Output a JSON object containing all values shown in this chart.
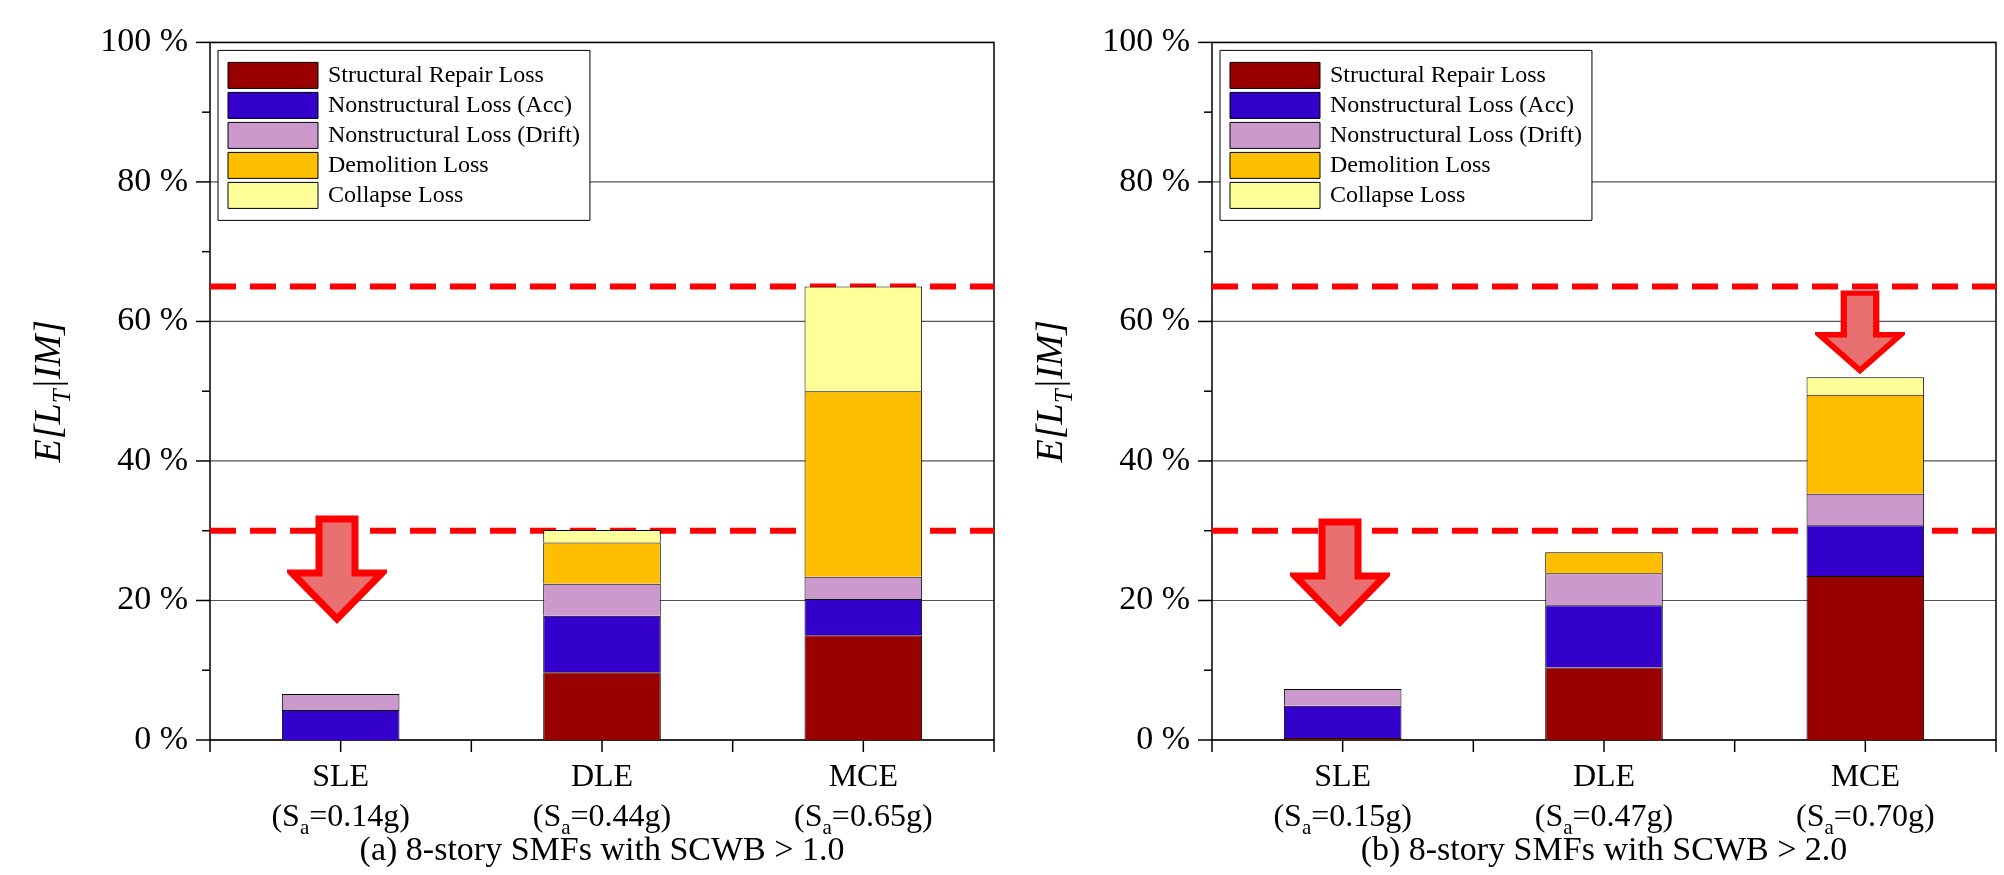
{
  "chart_data": [
    {
      "type": "bar",
      "stacked": true,
      "title": "(a) 8-story SMFs with SCWB > 1.0",
      "ylabel": "E[L$_{T}$|IM]",
      "categories": [
        "SLE\n(S$_{a}$=0.14g)",
        "DLE\n(S$_{a}$=0.44g)",
        "MCE\n(S$_{a}$=0.65g)"
      ],
      "series": [
        {
          "name": "Structural Repair Loss",
          "color": "#990000",
          "values": [
            0,
            9.7,
            15.0
          ]
        },
        {
          "name": "Nonstructural Loss (Acc)",
          "color": "#3300cc",
          "values": [
            4.3,
            8.1,
            5.2
          ]
        },
        {
          "name": "Nonstructural Loss (Drift)",
          "color": "#cc99cc",
          "values": [
            2.3,
            4.6,
            3.2
          ]
        },
        {
          "name": "Demolition Loss",
          "color": "#ffbf00",
          "values": [
            0,
            5.9,
            26.6
          ]
        },
        {
          "name": "Collapse Loss",
          "color": "#ffff99",
          "values": [
            0,
            1.8,
            15.0
          ]
        }
      ],
      "ylim": [
        0,
        100
      ],
      "yticks": [
        {
          "value": 0,
          "label": "0 %"
        },
        {
          "value": 10,
          "label": null
        },
        {
          "value": 20,
          "label": "20 %"
        },
        {
          "value": 30,
          "label": null
        },
        {
          "value": 40,
          "label": "40 %"
        },
        {
          "value": 50,
          "label": null
        },
        {
          "value": 60,
          "label": "60 %"
        },
        {
          "value": 70,
          "label": null
        },
        {
          "value": 80,
          "label": "80 %"
        },
        {
          "value": 90,
          "label": null
        },
        {
          "value": 100,
          "label": "100 %"
        }
      ],
      "grid": "y",
      "legend": "top left",
      "ref_lines": [
        {
          "axis": "y",
          "value": 65,
          "color": "#ff0000",
          "line_style": "dashed"
        },
        {
          "axis": "y",
          "value": 30,
          "color": "#ff0000",
          "line_style": "dashed"
        }
      ]
    },
    {
      "type": "bar",
      "stacked": true,
      "title": "(b) 8-story SMFs with SCWB > 2.0",
      "ylabel": "E[L$_{T}$|IM]",
      "categories": [
        "SLE\n(S$_{a}$=0.15g)",
        "DLE\n(S$_{a}$=0.47g)",
        "MCE\n(S$_{a}$=0.70g)"
      ],
      "series": [
        {
          "name": "Structural Repair Loss",
          "color": "#990000",
          "values": [
            0.3,
            10.4,
            23.5
          ]
        },
        {
          "name": "Nonstructural Loss (Acc)",
          "color": "#3300cc",
          "values": [
            4.6,
            8.9,
            7.3
          ]
        },
        {
          "name": "Nonstructural Loss (Drift)",
          "color": "#cc99cc",
          "values": [
            2.4,
            4.6,
            4.5
          ]
        },
        {
          "name": "Demolition Loss",
          "color": "#ffbf00",
          "values": [
            0,
            3.0,
            14.2
          ]
        },
        {
          "name": "Collapse Loss",
          "color": "#ffff99",
          "values": [
            0,
            null,
            2.5
          ]
        }
      ],
      "ylim": [
        0,
        100
      ],
      "yticks": [
        {
          "value": 0,
          "label": "0 %"
        },
        {
          "value": 10,
          "label": null
        },
        {
          "value": 20,
          "label": "20 %"
        },
        {
          "value": 30,
          "label": null
        },
        {
          "value": 40,
          "label": "40 %"
        },
        {
          "value": 50,
          "label": null
        },
        {
          "value": 60,
          "label": "60 %"
        },
        {
          "value": 70,
          "label": null
        },
        {
          "value": 80,
          "label": "80 %"
        },
        {
          "value": 90,
          "label": null
        },
        {
          "value": 100,
          "label": "100 %"
        }
      ],
      "grid": "y",
      "legend": "top left",
      "ref_lines": [
        {
          "axis": "y",
          "value": 65,
          "color": "#ff0000",
          "line_style": "dashed"
        },
        {
          "axis": "y",
          "value": 30,
          "color": "#ff0000",
          "line_style": "dashed"
        }
      ]
    }
  ]
}
